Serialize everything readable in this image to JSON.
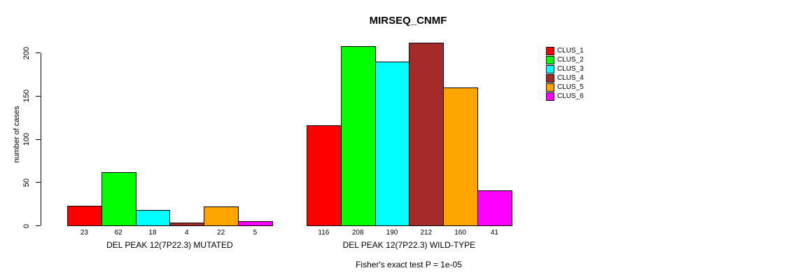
{
  "chart_data": {
    "type": "bar",
    "title": "MIRSEQ_CNMF",
    "ylabel": "number of cases",
    "xlabel": "",
    "ylim": [
      0,
      200
    ],
    "yticks": [
      0,
      50,
      100,
      150,
      200
    ],
    "grid": false,
    "legend_position": "right",
    "categories": [
      "DEL PEAK 12(7P22.3) MUTATED",
      "DEL PEAK 12(7P22.3) WILD-TYPE"
    ],
    "series": [
      {
        "name": "CLUS_1",
        "color": "#FF0000",
        "values": [
          23,
          116
        ]
      },
      {
        "name": "CLUS_2",
        "color": "#00FF00",
        "values": [
          62,
          208
        ]
      },
      {
        "name": "CLUS_3",
        "color": "#00FFFF",
        "values": [
          18,
          190
        ]
      },
      {
        "name": "CLUS_4",
        "color": "#A52A2A",
        "values": [
          4,
          212
        ]
      },
      {
        "name": "CLUS_5",
        "color": "#FFA500",
        "values": [
          22,
          160
        ]
      },
      {
        "name": "CLUS_6",
        "color": "#FF00FF",
        "values": [
          5,
          41
        ]
      }
    ],
    "bar_value_labels": true,
    "annotation": "Fisher's exact test P = 1e-05",
    "colors": {
      "background": "#FFFFFF",
      "axis": "#000000",
      "text": "#000000"
    }
  }
}
